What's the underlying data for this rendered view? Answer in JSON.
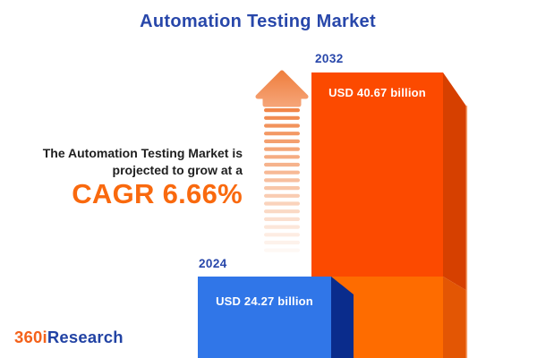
{
  "page": {
    "background": "#FFFFFF"
  },
  "title": {
    "text": "Automation Testing Market",
    "color": "#2847AA"
  },
  "description": {
    "line1": "The Automation Testing Market is",
    "line2": "projected to grow at a",
    "cagr": "CAGR 6.66%",
    "text_color": "#1F1F1F",
    "cagr_color": "#F9690E"
  },
  "bars": {
    "b2024": {
      "year": "2024",
      "value_label": "USD 24.27 billion",
      "front_color": "#3076E8",
      "side_color": "#0A2C8C",
      "year_color": "#2847AA",
      "label_color": "#FFFFFF"
    },
    "b2032": {
      "year": "2032",
      "value_label": "USD 40.67 billion",
      "front_top_color": "#FC4A00",
      "front_bottom_color": "#FE6C00",
      "side_top_color": "#D64000",
      "side_bottom_color": "#E35604",
      "edge_highlight_color": "#F8AE7E",
      "year_color": "#2847AA",
      "label_color": "#FFFFFF"
    }
  },
  "arrow": {
    "head_top_color": "#EF8040",
    "head_bottom_color": "#F5A376",
    "stripe_color": "#F0803F",
    "stripe_count": 19
  },
  "logo": {
    "part1": "360i",
    "part2": "Research",
    "part1_color": "#F4621B",
    "part2_color": "#2243A4"
  },
  "chart_data": {
    "type": "bar",
    "title": "Automation Testing Market",
    "categories": [
      "2024",
      "2032"
    ],
    "values": [
      24.27,
      40.67
    ],
    "unit": "USD billion",
    "value_labels": [
      "USD 24.27 billion",
      "USD 40.67 billion"
    ],
    "cagr_percent": 6.66,
    "annotation": "The Automation Testing Market is projected to grow at a CAGR 6.66%",
    "series_colors": {
      "2024": "#3076E8",
      "2032": "#FC4A00"
    },
    "legend": "none",
    "grid": false
  }
}
